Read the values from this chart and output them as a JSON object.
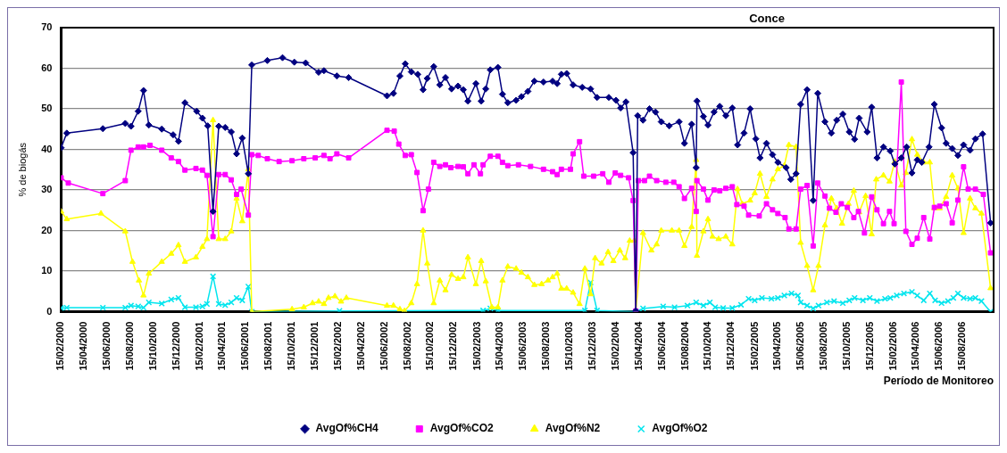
{
  "chart_data": {
    "type": "line",
    "title": "Conce",
    "xlabel": "Período de Monitoreo",
    "ylabel": "% de biogás",
    "xlim": [
      "2000-02-15",
      "2006-11-05"
    ],
    "xticks": [
      {
        "value": "2000-02-15",
        "label": "15/02/2000"
      },
      {
        "value": "2000-04-15",
        "label": "15/04/2000"
      },
      {
        "value": "2000-06-15",
        "label": "15/06/2000"
      },
      {
        "value": "2000-08-15",
        "label": "15/08/2000"
      },
      {
        "value": "2000-10-15",
        "label": "15/10/2000"
      },
      {
        "value": "2000-12-15",
        "label": "15/12/2000"
      },
      {
        "value": "2001-02-15",
        "label": "15/02/2001"
      },
      {
        "value": "2001-04-15",
        "label": "15/04/2001"
      },
      {
        "value": "2001-06-15",
        "label": "15/06/2001"
      },
      {
        "value": "2001-08-15",
        "label": "15/08/2001"
      },
      {
        "value": "2001-10-15",
        "label": "15/10/2001"
      },
      {
        "value": "2001-12-15",
        "label": "15/12/2001"
      },
      {
        "value": "2002-02-15",
        "label": "15/02/2002"
      },
      {
        "value": "2002-04-15",
        "label": "15/04/2002"
      },
      {
        "value": "2002-06-15",
        "label": "15/06/2002"
      },
      {
        "value": "2002-08-15",
        "label": "15/08/2002"
      },
      {
        "value": "2002-10-15",
        "label": "15/10/2002"
      },
      {
        "value": "2002-12-15",
        "label": "15/12/2002"
      },
      {
        "value": "2003-02-15",
        "label": "15/02/2003"
      },
      {
        "value": "2003-04-15",
        "label": "15/04/2003"
      },
      {
        "value": "2003-06-15",
        "label": "15/06/2003"
      },
      {
        "value": "2003-08-15",
        "label": "15/08/2003"
      },
      {
        "value": "2003-10-15",
        "label": "15/10/2003"
      },
      {
        "value": "2003-12-15",
        "label": "15/12/2003"
      },
      {
        "value": "2004-02-15",
        "label": "15/02/2004"
      },
      {
        "value": "2004-04-15",
        "label": "15/04/2004"
      },
      {
        "value": "2004-06-15",
        "label": "15/06/2004"
      },
      {
        "value": "2004-08-15",
        "label": "15/08/2004"
      },
      {
        "value": "2004-10-15",
        "label": "15/10/2004"
      },
      {
        "value": "2004-12-15",
        "label": "15/12/2004"
      },
      {
        "value": "2005-02-15",
        "label": "15/02/2005"
      },
      {
        "value": "2005-04-15",
        "label": "15/04/2005"
      },
      {
        "value": "2005-06-15",
        "label": "15/06/2005"
      },
      {
        "value": "2005-08-15",
        "label": "15/08/2005"
      },
      {
        "value": "2005-10-15",
        "label": "15/10/2005"
      },
      {
        "value": "2005-12-15",
        "label": "15/12/2005"
      },
      {
        "value": "2006-02-15",
        "label": "15/02/2006"
      },
      {
        "value": "2006-04-15",
        "label": "15/04/2006"
      },
      {
        "value": "2006-06-15",
        "label": "15/06/2006"
      },
      {
        "value": "2006-08-15",
        "label": "15/08/2006"
      }
    ],
    "ylim": [
      0,
      70
    ],
    "yticks": [
      0,
      10,
      20,
      30,
      40,
      50,
      60,
      70
    ],
    "grid": "y",
    "legend": "bottom",
    "series": [
      {
        "name": "AvgOf%CH4",
        "color": "#000080",
        "marker": "diamond",
        "x": [
          "2000-02-15",
          "2000-03-01",
          "2000-06-04",
          "2000-08-02",
          "2000-08-17",
          "2000-09-05",
          "2000-09-19",
          "2000-10-03",
          "2000-11-06",
          "2000-12-06",
          "2000-12-20",
          "2001-01-06",
          "2001-02-06",
          "2001-02-21",
          "2001-03-07",
          "2001-03-21",
          "2001-04-05",
          "2001-04-22",
          "2001-05-08",
          "2001-05-22",
          "2001-06-06",
          "2001-06-22",
          "2001-07-01",
          "2001-08-11",
          "2001-09-20",
          "2001-10-21",
          "2001-11-20",
          "2001-12-24",
          "2002-01-07",
          "2002-02-10",
          "2002-03-13",
          "2002-06-22",
          "2002-07-09",
          "2002-07-26",
          "2002-08-09",
          "2002-08-25",
          "2002-09-11",
          "2002-09-25",
          "2002-10-06",
          "2002-10-23",
          "2002-11-08",
          "2002-11-23",
          "2002-12-09",
          "2002-12-26",
          "2003-01-09",
          "2003-01-21",
          "2003-02-11",
          "2003-02-25",
          "2003-03-09",
          "2003-03-21",
          "2003-04-10",
          "2003-04-22",
          "2003-05-06",
          "2003-05-28",
          "2003-06-11",
          "2003-06-28",
          "2003-07-15",
          "2003-08-08",
          "2003-09-01",
          "2003-09-13",
          "2003-09-24",
          "2003-10-08",
          "2003-10-25",
          "2003-11-18",
          "2003-12-10",
          "2003-12-27",
          "2004-01-27",
          "2004-02-15",
          "2004-02-27",
          "2004-03-12",
          "2004-03-31",
          "2004-04-07",
          "2004-04-12",
          "2004-04-26",
          "2004-05-13",
          "2004-05-29",
          "2004-06-13",
          "2004-07-04",
          "2004-07-30",
          "2004-08-13",
          "2004-09-01",
          "2004-09-13",
          "2004-09-15",
          "2004-10-02",
          "2004-10-14",
          "2004-10-30",
          "2004-11-14",
          "2004-11-30",
          "2004-12-17",
          "2004-12-31",
          "2005-01-17",
          "2005-02-02",
          "2005-02-17",
          "2005-02-28",
          "2005-03-17",
          "2005-04-02",
          "2005-04-16",
          "2005-05-08",
          "2005-05-20",
          "2005-06-03",
          "2005-06-15",
          "2005-07-02",
          "2005-07-18",
          "2005-07-30",
          "2005-08-18",
          "2005-09-04",
          "2005-09-18",
          "2005-10-04",
          "2005-10-21",
          "2005-11-04",
          "2005-11-16",
          "2005-12-07",
          "2005-12-19",
          "2006-01-02",
          "2006-01-19",
          "2006-02-06",
          "2006-02-18",
          "2006-03-07",
          "2006-03-21",
          "2006-04-04",
          "2006-04-18",
          "2006-04-30",
          "2006-05-19",
          "2006-06-02",
          "2006-06-21",
          "2006-07-03",
          "2006-07-19",
          "2006-08-03",
          "2006-08-18",
          "2006-09-04",
          "2006-09-18",
          "2006-10-07",
          "2006-10-28"
        ],
        "values": [
          40.4,
          44,
          45.1,
          46.4,
          45.7,
          49.4,
          54.5,
          46,
          45,
          43.6,
          42,
          51.5,
          49.4,
          47.7,
          45.8,
          24.7,
          45.7,
          45.4,
          44.3,
          38.9,
          42.8,
          34,
          60.8,
          61.9,
          62.6,
          61.5,
          61.3,
          59,
          59.4,
          58.1,
          57.7,
          53.2,
          53.8,
          58.1,
          61.1,
          59.1,
          58.5,
          54.7,
          57.5,
          60.4,
          55.9,
          57.7,
          54.9,
          55.6,
          54.7,
          51.9,
          56.2,
          51.9,
          54.9,
          59.6,
          60.2,
          53.6,
          51.5,
          52.1,
          53,
          54.3,
          56.8,
          56.6,
          56.8,
          56.2,
          58.5,
          58.7,
          55.9,
          55.3,
          54.9,
          52.8,
          52.8,
          52.1,
          50.2,
          51.7,
          39.2,
          0.2,
          48.3,
          47.2,
          50,
          49.2,
          46.8,
          45.8,
          46.8,
          41.5,
          46.2,
          35.5,
          51.9,
          48.1,
          46,
          49.2,
          50.6,
          48.3,
          50.2,
          41.1,
          44,
          50,
          42.6,
          37.9,
          41.5,
          38.7,
          36.8,
          35.5,
          32.6,
          34,
          51.1,
          54.7,
          27.4,
          53.8,
          46.8,
          44,
          47.2,
          48.7,
          44.3,
          42.5,
          47.7,
          44.3,
          50.4,
          37.9,
          40.6,
          39.6,
          36.4,
          37.9,
          40.6,
          34.2,
          37.4,
          36.8,
          40.6,
          51.1,
          45.3,
          41.5,
          40.2,
          38.5,
          41.1,
          39.8,
          42.6,
          43.8,
          21.9
        ]
      },
      {
        "name": "AvgOf%CO2",
        "color": "#ff00ff",
        "marker": "square",
        "x": [
          "2000-02-15",
          "2000-03-05",
          "2000-06-04",
          "2000-08-02",
          "2000-08-17",
          "2000-09-05",
          "2000-09-19",
          "2000-10-06",
          "2000-11-06",
          "2000-12-01",
          "2000-12-20",
          "2001-01-06",
          "2001-02-04",
          "2001-02-21",
          "2001-03-05",
          "2001-03-21",
          "2001-04-05",
          "2001-04-22",
          "2001-05-08",
          "2001-05-22",
          "2001-06-03",
          "2001-06-22",
          "2001-07-01",
          "2001-07-18",
          "2001-08-11",
          "2001-09-11",
          "2001-10-15",
          "2001-11-15",
          "2001-12-15",
          "2002-01-07",
          "2002-01-23",
          "2002-02-10",
          "2002-03-13",
          "2002-06-22",
          "2002-07-11",
          "2002-07-23",
          "2002-08-09",
          "2002-08-25",
          "2002-09-09",
          "2002-09-25",
          "2002-10-09",
          "2002-10-23",
          "2002-11-08",
          "2002-11-23",
          "2002-12-07",
          "2002-12-26",
          "2003-01-09",
          "2003-01-21",
          "2003-02-06",
          "2003-02-23",
          "2003-03-02",
          "2003-03-21",
          "2003-04-10",
          "2003-04-22",
          "2003-05-06",
          "2003-06-03",
          "2003-07-05",
          "2003-08-08",
          "2003-09-01",
          "2003-09-13",
          "2003-09-24",
          "2003-10-18",
          "2003-10-25",
          "2003-11-11",
          "2003-11-22",
          "2003-12-18",
          "2004-01-11",
          "2004-01-27",
          "2004-02-13",
          "2004-02-27",
          "2004-03-19",
          "2004-03-31",
          "2004-04-07",
          "2004-04-14",
          "2004-04-30",
          "2004-05-13",
          "2004-06-01",
          "2004-06-25",
          "2004-07-16",
          "2004-07-30",
          "2004-08-13",
          "2004-09-01",
          "2004-09-13",
          "2004-09-15",
          "2004-10-02",
          "2004-10-14",
          "2004-10-30",
          "2004-11-14",
          "2004-11-30",
          "2004-12-17",
          "2004-12-29",
          "2005-01-17",
          "2005-01-29",
          "2005-02-26",
          "2005-03-17",
          "2005-04-02",
          "2005-04-16",
          "2005-05-05",
          "2005-05-15",
          "2005-06-03",
          "2005-06-15",
          "2005-07-02",
          "2005-07-18",
          "2005-07-30",
          "2005-08-18",
          "2005-08-30",
          "2005-09-16",
          "2005-09-30",
          "2005-10-16",
          "2005-11-02",
          "2005-11-14",
          "2005-11-30",
          "2005-12-19",
          "2006-01-02",
          "2006-01-19",
          "2006-02-04",
          "2006-02-16",
          "2006-03-07",
          "2006-03-19",
          "2006-04-04",
          "2006-04-18",
          "2006-05-05",
          "2006-05-21",
          "2006-06-02",
          "2006-06-16",
          "2006-07-03",
          "2006-07-19",
          "2006-08-03",
          "2006-08-18",
          "2006-08-30",
          "2006-09-18",
          "2006-10-09",
          "2006-10-28"
        ],
        "values": [
          33,
          31.7,
          29.1,
          32.3,
          39.8,
          40.6,
          40.6,
          41,
          39.8,
          37.9,
          37,
          34.9,
          35.3,
          34.9,
          33.6,
          18.5,
          33.8,
          33.8,
          32.5,
          28.9,
          30.2,
          23.8,
          38.7,
          38.5,
          37.7,
          37,
          37.2,
          37.7,
          37.9,
          38.5,
          37.7,
          38.9,
          37.9,
          44.7,
          44.5,
          41.3,
          38.5,
          38.7,
          34.3,
          24.9,
          30.2,
          36.8,
          35.8,
          36.2,
          35.5,
          35.8,
          35.7,
          34,
          36.2,
          34,
          36.2,
          38.3,
          38.3,
          36.8,
          36,
          36.2,
          35.8,
          35.1,
          34.5,
          33.8,
          35.1,
          35.1,
          38.9,
          41.9,
          33.4,
          33.4,
          34,
          31.9,
          34.2,
          33.6,
          33,
          27.4,
          0.2,
          32.3,
          32.3,
          33.4,
          32.3,
          31.9,
          31.9,
          30.8,
          27.9,
          30.4,
          24.7,
          32.3,
          30.2,
          27.5,
          30,
          29.8,
          30.4,
          30.8,
          26.4,
          26,
          23.8,
          23.6,
          26.6,
          25.1,
          24.2,
          23.2,
          20.4,
          20.4,
          30.2,
          31.1,
          16.2,
          31.7,
          28.5,
          25.5,
          24.5,
          26.6,
          25.7,
          23.2,
          24.7,
          19.4,
          28.3,
          25.1,
          21.7,
          24.7,
          21.7,
          56.6,
          19.8,
          16.6,
          18.1,
          23.2,
          17.9,
          25.7,
          26,
          26.6,
          21.9,
          27.5,
          35.7,
          30.2,
          30.2,
          28.9,
          14.5
        ]
      },
      {
        "name": "AvgOf%N2",
        "color": "#ffff00",
        "marker": "triangle",
        "x": [
          "2000-02-15",
          "2000-03-01",
          "2000-05-30",
          "2000-08-02",
          "2000-08-21",
          "2000-09-07",
          "2000-09-19",
          "2000-10-03",
          "2000-11-06",
          "2000-12-01",
          "2000-12-20",
          "2001-01-06",
          "2001-02-04",
          "2001-02-21",
          "2001-03-05",
          "2001-03-21",
          "2001-04-05",
          "2001-04-22",
          "2001-05-08",
          "2001-05-22",
          "2001-06-06",
          "2001-06-22",
          "2001-07-01",
          "2001-10-15",
          "2001-11-15",
          "2001-12-08",
          "2001-12-24",
          "2002-01-07",
          "2002-01-19",
          "2002-02-05",
          "2002-02-21",
          "2002-03-07",
          "2002-06-22",
          "2002-07-09",
          "2002-07-26",
          "2002-08-07",
          "2002-08-25",
          "2002-09-09",
          "2002-09-25",
          "2002-10-06",
          "2002-10-23",
          "2002-11-08",
          "2002-11-23",
          "2002-12-09",
          "2002-12-26",
          "2003-01-09",
          "2003-01-21",
          "2003-02-11",
          "2003-02-25",
          "2003-03-09",
          "2003-03-25",
          "2003-04-10",
          "2003-04-22",
          "2003-05-06",
          "2003-05-28",
          "2003-06-11",
          "2003-06-28",
          "2003-07-15",
          "2003-08-03",
          "2003-08-20",
          "2003-09-01",
          "2003-09-13",
          "2003-09-24",
          "2003-10-08",
          "2003-10-25",
          "2003-11-11",
          "2003-11-25",
          "2003-12-10",
          "2003-12-22",
          "2004-01-08",
          "2004-01-25",
          "2004-02-08",
          "2004-02-25",
          "2004-03-10",
          "2004-03-22",
          "2004-04-03",
          "2004-04-07",
          "2004-04-26",
          "2004-05-18",
          "2004-06-01",
          "2004-06-13",
          "2004-07-11",
          "2004-07-30",
          "2004-08-13",
          "2004-09-01",
          "2004-09-13",
          "2004-09-15",
          "2004-10-02",
          "2004-10-14",
          "2004-10-26",
          "2004-11-11",
          "2004-11-30",
          "2004-12-17",
          "2004-12-31",
          "2005-01-12",
          "2005-02-02",
          "2005-02-14",
          "2005-02-28",
          "2005-03-17",
          "2005-04-02",
          "2005-04-16",
          "2005-05-03",
          "2005-05-15",
          "2005-06-03",
          "2005-06-15",
          "2005-07-02",
          "2005-07-18",
          "2005-08-01",
          "2005-08-18",
          "2005-09-04",
          "2005-09-18",
          "2005-10-02",
          "2005-10-19",
          "2005-11-02",
          "2005-11-16",
          "2005-12-03",
          "2005-12-19",
          "2005-12-31",
          "2006-01-19",
          "2006-02-04",
          "2006-02-18",
          "2006-03-07",
          "2006-03-19",
          "2006-04-04",
          "2006-04-18",
          "2006-05-05",
          "2006-05-21",
          "2006-06-02",
          "2006-06-16",
          "2006-07-03",
          "2006-07-19",
          "2006-08-03",
          "2006-08-18",
          "2006-09-04",
          "2006-09-18",
          "2006-10-04",
          "2006-10-28"
        ],
        "values": [
          24.7,
          22.8,
          24.2,
          19.8,
          12.3,
          7.7,
          4,
          9.4,
          12.3,
          14.3,
          16.4,
          12.3,
          13.4,
          16,
          17.9,
          47.2,
          17.9,
          17.9,
          19.8,
          27.9,
          22.3,
          35.1,
          0,
          0.6,
          1.1,
          2.1,
          2.5,
          1.9,
          3.4,
          3.8,
          2.5,
          3.4,
          1.5,
          1.5,
          0.6,
          0.2,
          2.1,
          6.8,
          20,
          11.9,
          2.1,
          7.7,
          5.3,
          9.1,
          8.1,
          8.5,
          13.4,
          6.8,
          12.5,
          7.5,
          1.1,
          1.1,
          7.7,
          11.1,
          10.6,
          9.6,
          8.5,
          6.6,
          6.8,
          7.7,
          8.5,
          9.4,
          5.7,
          5.7,
          4.7,
          1.9,
          10.6,
          4.3,
          13.2,
          11.9,
          14.7,
          12.5,
          15.1,
          13.2,
          17.5,
          17.5,
          0,
          19.4,
          15.1,
          16.6,
          20,
          20,
          20,
          16.2,
          20.9,
          37.4,
          13.8,
          19.8,
          22.8,
          18.5,
          17.9,
          18.5,
          16.6,
          30.2,
          26.6,
          27.4,
          29.2,
          34,
          28.3,
          32.6,
          35.1,
          36,
          41.1,
          40.6,
          17,
          11.3,
          5.3,
          11.3,
          21.3,
          27.9,
          25.5,
          21.7,
          26.6,
          29.8,
          24.5,
          28.5,
          19.1,
          32.6,
          33.6,
          32.1,
          37,
          31.1,
          34.2,
          42.5,
          38.7,
          36.8,
          36.8,
          25.5,
          25.5,
          28.3,
          33.6,
          30.4,
          19.4,
          27.9,
          25.5,
          24.2,
          5.8
        ]
      },
      {
        "name": "AvgOf%O2",
        "color": "#00e5ee",
        "marker": "cross",
        "x": [
          "2000-02-15",
          "2000-03-01",
          "2000-06-04",
          "2000-08-02",
          "2000-08-17",
          "2000-09-05",
          "2000-09-19",
          "2000-10-03",
          "2000-11-06",
          "2000-12-01",
          "2000-12-20",
          "2001-01-06",
          "2001-02-04",
          "2001-02-21",
          "2001-03-05",
          "2001-03-21",
          "2001-04-05",
          "2001-04-22",
          "2001-05-08",
          "2001-05-22",
          "2001-06-06",
          "2001-06-22",
          "2001-07-01",
          "2002-02-17",
          "2003-03-02",
          "2003-03-21",
          "2003-04-10",
          "2003-11-25",
          "2003-12-10",
          "2003-12-27",
          "2004-04-07",
          "2004-04-26",
          "2004-06-18",
          "2004-07-18",
          "2004-08-21",
          "2004-09-13",
          "2004-10-02",
          "2004-10-19",
          "2004-11-02",
          "2004-11-23",
          "2004-12-17",
          "2005-01-09",
          "2005-01-29",
          "2005-02-14",
          "2005-03-05",
          "2005-03-30",
          "2005-04-16",
          "2005-05-03",
          "2005-05-22",
          "2005-06-08",
          "2005-06-15",
          "2005-07-02",
          "2005-07-18",
          "2005-08-01",
          "2005-08-23",
          "2005-09-11",
          "2005-10-04",
          "2005-10-21",
          "2005-11-04",
          "2005-11-26",
          "2005-12-14",
          "2006-01-02",
          "2006-01-23",
          "2006-02-06",
          "2006-02-23",
          "2006-03-14",
          "2006-04-04",
          "2006-04-18",
          "2006-05-05",
          "2006-05-21",
          "2006-06-04",
          "2006-06-21",
          "2006-07-08",
          "2006-07-22",
          "2006-08-03",
          "2006-08-18",
          "2006-09-04",
          "2006-09-18",
          "2006-10-04",
          "2006-10-28"
        ],
        "values": [
          0.9,
          1,
          1,
          1,
          1.5,
          1.3,
          1,
          2.3,
          2,
          3,
          3.4,
          1.1,
          1.1,
          1.3,
          1.9,
          8.7,
          1.9,
          1.6,
          2.3,
          3.4,
          2.8,
          6.2,
          0,
          0.2,
          0.3,
          0.8,
          0.3,
          0.3,
          7.2,
          0.3,
          0,
          0.8,
          1.3,
          1.1,
          1.5,
          2.3,
          1.5,
          2.3,
          1.1,
          0.9,
          0.9,
          1.7,
          3.2,
          2.8,
          3.4,
          3.2,
          3.4,
          4,
          4.5,
          4,
          2.3,
          1.5,
          0.8,
          1.5,
          2.3,
          2.6,
          2.1,
          2.8,
          3.4,
          2.8,
          3.4,
          2.6,
          3.2,
          3.4,
          4,
          4.5,
          4.9,
          4,
          2.8,
          4.5,
          2.8,
          2.1,
          2.6,
          3.4,
          4.5,
          3.4,
          3.2,
          3.4,
          2.6,
          0
        ]
      }
    ]
  }
}
